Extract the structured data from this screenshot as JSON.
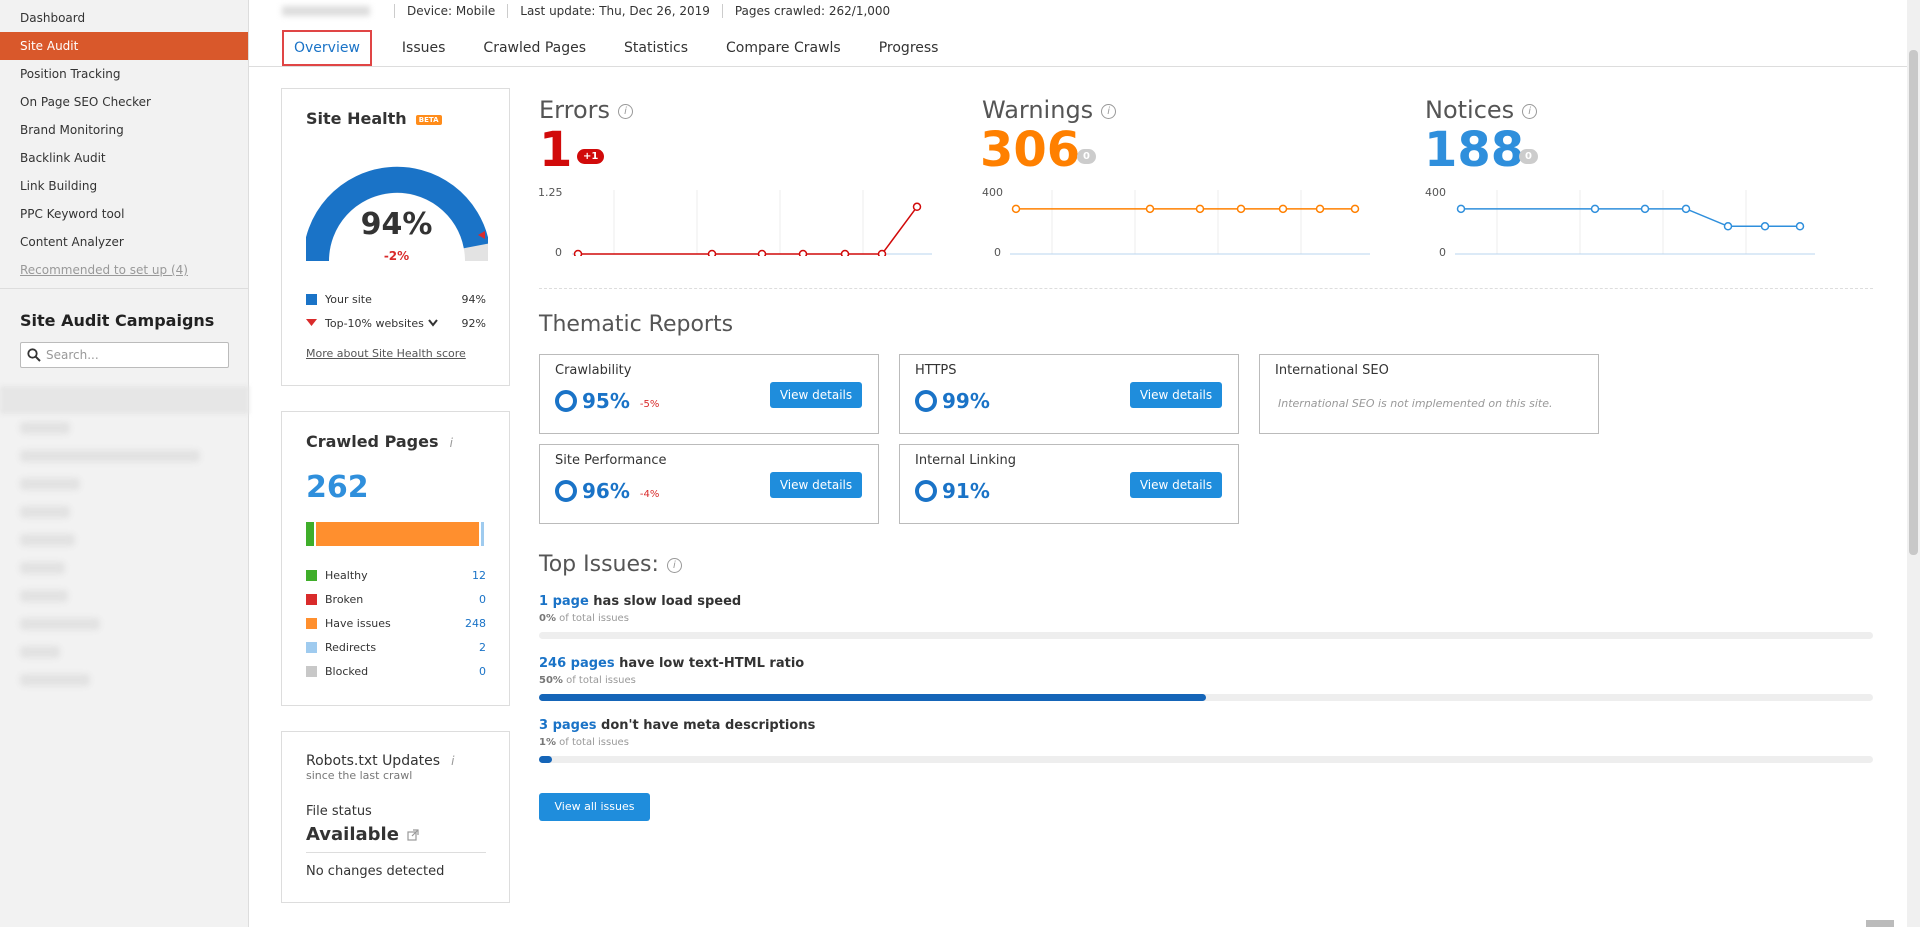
{
  "sidebar": {
    "items": [
      {
        "label": "Dashboard"
      },
      {
        "label": "Site Audit"
      },
      {
        "label": "Position Tracking"
      },
      {
        "label": "On Page SEO Checker"
      },
      {
        "label": "Brand Monitoring"
      },
      {
        "label": "Backlink Audit"
      },
      {
        "label": "Link Building"
      },
      {
        "label": "PPC Keyword tool"
      },
      {
        "label": "Content Analyzer"
      }
    ],
    "recommended": "Recommended to set up (4)",
    "campaigns_title": "Site Audit Campaigns",
    "search_placeholder": "Search..."
  },
  "topbar": {
    "device": "Device: Mobile",
    "last_update": "Last update: Thu, Dec 26, 2019",
    "pages_crawled": "Pages crawled: 262/1,000"
  },
  "tabs": [
    "Overview",
    "Issues",
    "Crawled Pages",
    "Statistics",
    "Compare Crawls",
    "Progress"
  ],
  "site_health": {
    "title": "Site Health",
    "beta": "BETA",
    "score": "94%",
    "score_value": 94,
    "delta": "-2%",
    "legend_your_site": "Your site",
    "legend_your_site_val": "94%",
    "legend_top10": "Top-10% websites",
    "legend_top10_val": "92%",
    "more_link": "More about Site Health score"
  },
  "crawled_pages": {
    "title": "Crawled Pages",
    "total": "262",
    "rows": [
      {
        "label": "Healthy",
        "value": "12",
        "color": "#3fae2a"
      },
      {
        "label": "Broken",
        "value": "0",
        "color": "#d92b2b"
      },
      {
        "label": "Have issues",
        "value": "248",
        "color": "#ff8f2e"
      },
      {
        "label": "Redirects",
        "value": "2",
        "color": "#9fcbef"
      },
      {
        "label": "Blocked",
        "value": "0",
        "color": "#c8c8c8"
      }
    ]
  },
  "robots": {
    "title": "Robots.txt Updates",
    "subtitle": "since the last crawl",
    "file_status_label": "File status",
    "file_status": "Available",
    "changes": "No changes detected"
  },
  "metrics": {
    "errors": {
      "title": "Errors",
      "value": "1",
      "badge": "+1",
      "color": "#d10a0a",
      "ymax": "1.25",
      "ymin": "0"
    },
    "warnings": {
      "title": "Warnings",
      "value": "306",
      "badge": "0",
      "color": "#ff8000",
      "ymax": "400",
      "ymin": "0"
    },
    "notices": {
      "title": "Notices",
      "value": "188",
      "badge": "0",
      "color": "#2f8fdc",
      "ymax": "400",
      "ymin": "0"
    }
  },
  "chart_data": [
    {
      "type": "line",
      "name": "Errors",
      "values": [
        0,
        0,
        0,
        0,
        0,
        0,
        1
      ],
      "ylim": [
        0,
        1.25
      ]
    },
    {
      "type": "line",
      "name": "Warnings",
      "values": [
        306,
        306,
        306,
        306,
        306,
        306,
        306
      ],
      "ylim": [
        0,
        400
      ]
    },
    {
      "type": "line",
      "name": "Notices",
      "values": [
        306,
        306,
        306,
        306,
        188,
        188,
        188
      ],
      "ylim": [
        0,
        400
      ]
    }
  ],
  "thematic": {
    "title": "Thematic Reports",
    "cards": [
      {
        "name": "Crawlability",
        "pct": "95%",
        "delta": "-5%",
        "button": "View details"
      },
      {
        "name": "HTTPS",
        "pct": "99%",
        "delta": "",
        "button": "View details"
      },
      {
        "name": "International SEO",
        "note": "International SEO is not implemented on this site."
      },
      {
        "name": "Site Performance",
        "pct": "96%",
        "delta": "-4%",
        "button": "View details"
      },
      {
        "name": "Internal Linking",
        "pct": "91%",
        "delta": "",
        "button": "View details"
      }
    ]
  },
  "top_issues": {
    "title": "Top Issues:",
    "issues": [
      {
        "link": "1 page",
        "text": " has slow load speed",
        "pct": "0%",
        "sub": " of total issues",
        "fill": 0
      },
      {
        "link": "246 pages",
        "text": " have low text-HTML ratio",
        "pct": "50%",
        "sub": " of total issues",
        "fill": 50
      },
      {
        "link": "3 pages",
        "text": " don't have meta descriptions",
        "pct": "1%",
        "sub": " of total issues",
        "fill": 1
      }
    ],
    "view_all": "View all issues"
  }
}
